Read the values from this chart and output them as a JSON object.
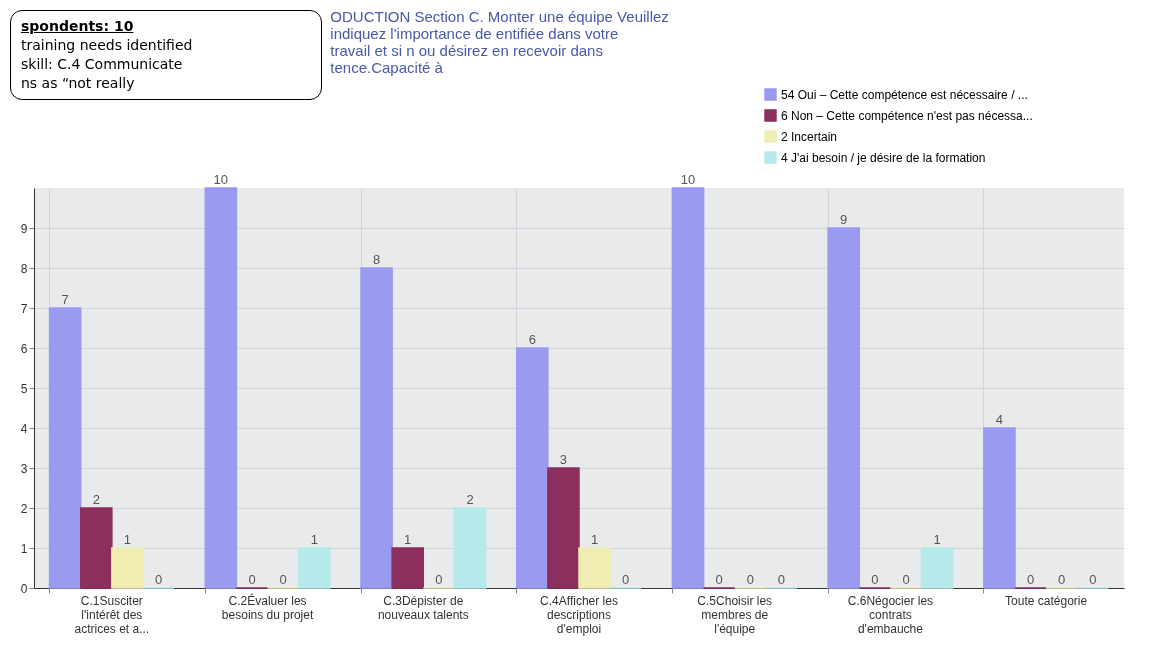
{
  "chart_data": {
    "type": "bar",
    "title": "ODUCTION Section C. Monter une équipe Veuillez indiquez l'importance de entifiée dans votre travail et si n ou désirez en recevoir dans tence.Capacité à",
    "annotations": [
      "spondents: 10",
      "training needs identified",
      "skill:  C.4 Communicate",
      "ns as “not really"
    ],
    "categories": [
      "C.1Susciter l'intérêt des actrices et a...",
      "C.2Évaluer les besoins du projet",
      "C.3Dépister de nouveaux talents",
      "C.4Afficher les descriptions d'emploi",
      "C.5Choisir les membres de l'équipe",
      "C.6Négocier les contrats d'embauche",
      "Toute catégorie"
    ],
    "series": [
      {
        "name": "54 Oui – Cette compétence est nécessaire / ...",
        "color": "#9a9af0",
        "values": [
          7,
          10,
          8,
          6,
          10,
          9,
          4
        ]
      },
      {
        "name": "6 Non – Cette compétence n'est pas nécessa...",
        "color": "#8b2f5f",
        "values": [
          2,
          0,
          1,
          3,
          0,
          0,
          0
        ]
      },
      {
        "name": "2 Incertain",
        "color": "#efedb2",
        "values": [
          1,
          0,
          0,
          1,
          0,
          0,
          0
        ]
      },
      {
        "name": "4 J'ai besoin / je désire de la formation",
        "color": "#b6e9e9",
        "values": [
          0,
          1,
          2,
          0,
          0,
          1,
          0
        ]
      }
    ],
    "ylim": [
      0,
      10
    ],
    "yticks": [
      0,
      1,
      2,
      3,
      4,
      5,
      6,
      7,
      8,
      9
    ],
    "grid": true,
    "legend": "top right",
    "data_labels": true
  }
}
